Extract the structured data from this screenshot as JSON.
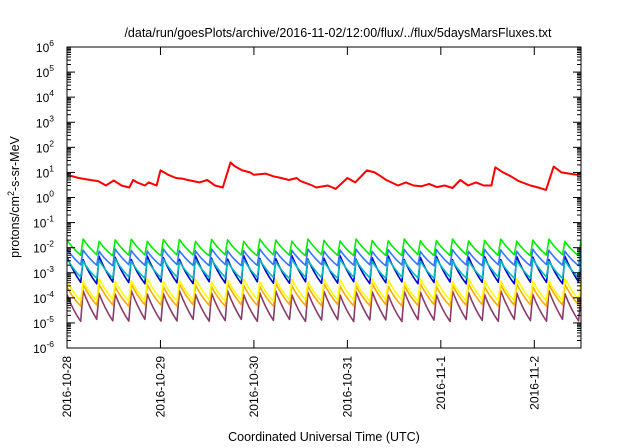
{
  "chart_data": {
    "type": "line",
    "title": "/data/run/goesPlots/archive/2016-11-02/12:00/flux/../flux/5daysMarsFluxes.txt",
    "xlabel": "Coordinated Universal Time (UTC)",
    "ylabel": "protons/cm²-s-sr-MeV",
    "ylabel_parts": [
      "protons/cm",
      "2",
      "-s-sr-MeV"
    ],
    "xlim": [
      "2016-10-28T00:00",
      "2016-11-02T12:00"
    ],
    "x_ticks": [
      "2016-10-28",
      "2016-10-29",
      "2016-10-30",
      "2016-10-31",
      "2016-11-1",
      "2016-11-2"
    ],
    "y_scale": "log",
    "ylim": [
      1e-06,
      1000000.0
    ],
    "y_tick_exponents": [
      -6,
      -5,
      -4,
      -3,
      -2,
      -1,
      0,
      1,
      2,
      3,
      4,
      5,
      6
    ],
    "y_tick_base": "10",
    "grid": false,
    "legend": "none",
    "series": [
      {
        "color": "#ff0000",
        "x": [
          "2016-10-28T00:00",
          "2016-10-28T03:00",
          "2016-10-28T06:00",
          "2016-10-28T08:00",
          "2016-10-28T10:00",
          "2016-10-28T12:00",
          "2016-10-28T14:00",
          "2016-10-28T16:00",
          "2016-10-28T17:00",
          "2016-10-28T18:00",
          "2016-10-28T20:00",
          "2016-10-28T21:00",
          "2016-10-28T23:00",
          "2016-10-29T00:00",
          "2016-10-29T02:00",
          "2016-10-29T04:00",
          "2016-10-29T06:00",
          "2016-10-29T07:00",
          "2016-10-29T10:00",
          "2016-10-29T12:00",
          "2016-10-29T14:00",
          "2016-10-29T16:00",
          "2016-10-29T18:00",
          "2016-10-29T19:00",
          "2016-10-29T21:00",
          "2016-10-29T23:00",
          "2016-10-30T00:00",
          "2016-10-30T03:00",
          "2016-10-30T05:00",
          "2016-10-30T07:00",
          "2016-10-30T09:00",
          "2016-10-30T11:00",
          "2016-10-30T12:00",
          "2016-10-30T15:00",
          "2016-10-30T16:00",
          "2016-10-30T19:00",
          "2016-10-30T21:00",
          "2016-10-31T00:00",
          "2016-10-31T02:00",
          "2016-10-31T05:00",
          "2016-10-31T07:00",
          "2016-10-31T08:00",
          "2016-10-31T10:00",
          "2016-10-31T13:00",
          "2016-10-31T15:00",
          "2016-10-31T17:00",
          "2016-10-31T19:00",
          "2016-10-31T21:00",
          "2016-10-31T23:00",
          "2016-11-01T01:00",
          "2016-11-01T03:00",
          "2016-11-01T05:00",
          "2016-11-01T07:00",
          "2016-11-01T09:00",
          "2016-11-01T11:00",
          "2016-11-01T13:00",
          "2016-11-01T14:00",
          "2016-11-01T16:00",
          "2016-11-01T18:00",
          "2016-11-01T20:00",
          "2016-11-01T23:00",
          "2016-11-02T01:00",
          "2016-11-02T03:00",
          "2016-11-02T05:00",
          "2016-11-02T07:00",
          "2016-11-02T09:00",
          "2016-11-02T11:00",
          "2016-11-02T12:00"
        ],
        "y": [
          8,
          6,
          5,
          4.5,
          3,
          4.8,
          3,
          2.5,
          5,
          4,
          3,
          4,
          3,
          12,
          8,
          6,
          5.5,
          5,
          4,
          5,
          3,
          2.5,
          25,
          18,
          12,
          10,
          8,
          9,
          7,
          6,
          5,
          6,
          4.5,
          3,
          2.5,
          3,
          2.2,
          6,
          4,
          12,
          10,
          8,
          5,
          3,
          4,
          3,
          2.8,
          3.5,
          2.6,
          3,
          2.4,
          5,
          3,
          4,
          3,
          3,
          16,
          10,
          7,
          4.5,
          3,
          2.5,
          2,
          17,
          10,
          9,
          8,
          10
        ]
      },
      {
        "color": "#00ee00",
        "peak_exp": -1.7,
        "floor_exp": -2.3
      },
      {
        "color": "#3377ff",
        "peak_exp": -2.1,
        "floor_exp": -2.7
      },
      {
        "color": "#00bbbb",
        "peak_exp": -2.5,
        "floor_exp": -3.2
      },
      {
        "color": "#0000cc",
        "peak_exp": -2.4,
        "floor_exp": -3.4
      },
      {
        "color": "#ffff00",
        "peak_exp": -3.3,
        "floor_exp": -4.1
      },
      {
        "color": "#ffaa00",
        "peak_exp": -3.5,
        "floor_exp": -4.3
      },
      {
        "color": "#8b3a6a",
        "peak_exp": -3.8,
        "floor_exp": -4.9
      }
    ]
  }
}
